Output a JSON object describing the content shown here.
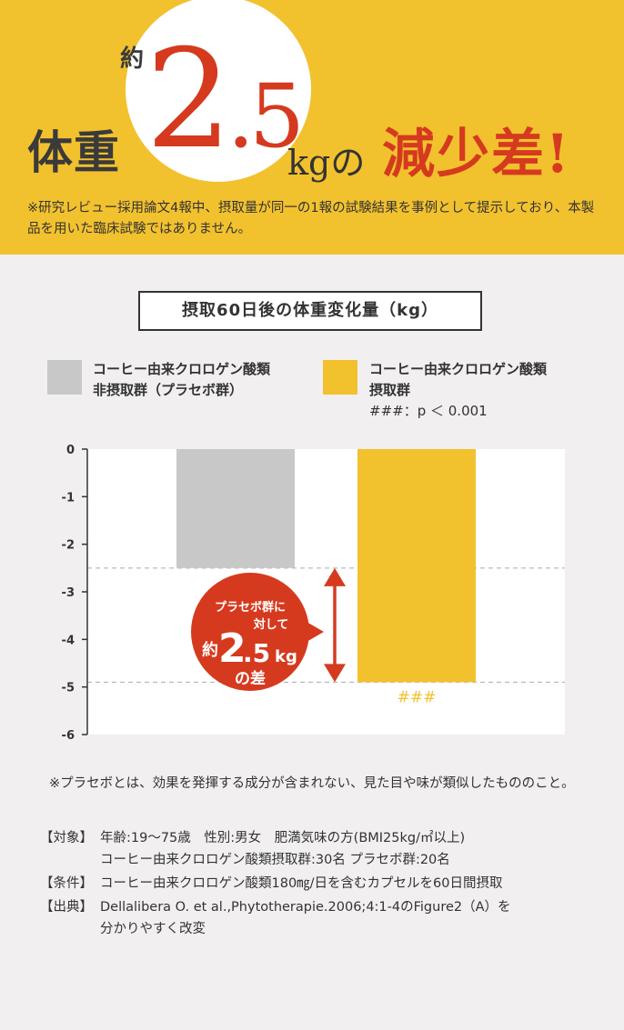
{
  "headline": {
    "prefix": "体重",
    "approx": "約",
    "int_part": "2",
    "dec_part": ".5",
    "unit": "kg",
    "no": "の",
    "suffix": "減少差!",
    "note": "※研究レビュー採用論文4報中、摂取量が同一の1報の試験結果を事例として提示しており、本製品を用いた臨床試験ではありません。"
  },
  "legend": {
    "placebo": {
      "line1": "コーヒー由来クロロゲン酸類",
      "line2": "非摂取群（プラセボ群）"
    },
    "treat": {
      "line1": "コーヒー由来クロロゲン酸類",
      "line2": "摂取群",
      "sig": "###：p ＜ 0.001"
    }
  },
  "colors": {
    "accent": "#f2c12e",
    "red": "#d53a1f",
    "placebo_bar": "#c8c8c8",
    "treat_bar": "#f2c12e"
  },
  "chart_data": {
    "type": "bar",
    "title": "摂取60日後の体重変化量（kg）",
    "categories": [
      "コーヒー由来クロロゲン酸類非摂取群（プラセボ群）",
      "コーヒー由来クロロゲン酸類摂取群"
    ],
    "values": [
      -2.5,
      -4.9
    ],
    "colors": [
      "#c8c8c8",
      "#f2c12e"
    ],
    "ylim": [
      -6,
      0
    ],
    "yticks": [
      "0",
      "-1",
      "-2",
      "-3",
      "-4",
      "-5",
      "-6"
    ],
    "bar_annotation": "###",
    "callout": {
      "line1": "プラセボ群に",
      "line2": "対して",
      "approx": "約",
      "int": "2",
      "dec": ".5",
      "unit": "kg",
      "tail": "の差"
    }
  },
  "notes": {
    "placebo_def": "※プラセボとは、効果を発揮する成分が含まれない、見た目や味が類似したもののこと。",
    "subjects_label": "【対象】",
    "subjects_1": "年齢:19〜75歳　性別:男女　肥満気味の方(BMI25kg/㎡以上)",
    "subjects_2": "コーヒー由来クロロゲン酸類摂取群:30名 プラセボ群:20名",
    "conditions_label": "【条件】",
    "conditions": "コーヒー由来クロロゲン酸類180㎎/日を含むカプセルを60日間摂取",
    "source_label": "【出典】",
    "source_1": "Dellalibera O. et al.,Phytotherapie.2006;4:1-4のFigure2（A）を",
    "source_2": "分かりやすく改変"
  }
}
